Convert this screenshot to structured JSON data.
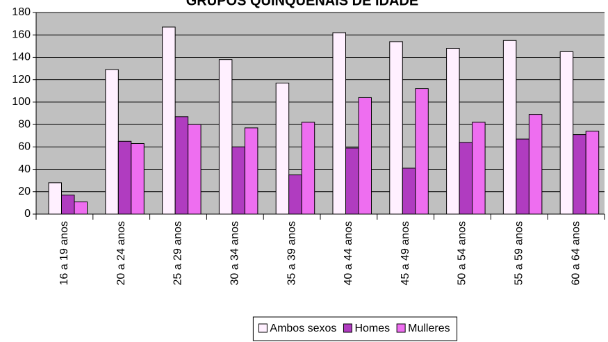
{
  "chart_data": {
    "type": "bar",
    "title": "GRUPOS QUINQUENAIS DE IDADE",
    "categories": [
      "16 a 19 anos",
      "20 a 24 anos",
      "25 a 29 anos",
      "30 a 34 anos",
      "35 a 39 anos",
      "40 a 44 anos",
      "45 a 49 anos",
      "50 a 54 anos",
      "55 a 59 anos",
      "60 a 64 anos"
    ],
    "series": [
      {
        "name": "Ambos sexos",
        "color": "#fff0ff",
        "values": [
          28,
          129,
          167,
          138,
          117,
          162,
          154,
          148,
          155,
          145
        ]
      },
      {
        "name": "Homes",
        "color": "#b03cc0",
        "values": [
          17,
          65,
          87,
          60,
          35,
          59,
          41,
          64,
          67,
          71
        ]
      },
      {
        "name": "Mulleres",
        "color": "#ee6ef0",
        "values": [
          11,
          63,
          80,
          77,
          82,
          104,
          112,
          82,
          89,
          74
        ]
      }
    ],
    "ylim": [
      0,
      180
    ],
    "yticks": [
      0,
      20,
      40,
      60,
      80,
      100,
      120,
      140,
      160,
      180
    ],
    "grid": true,
    "legend": "bottom"
  }
}
